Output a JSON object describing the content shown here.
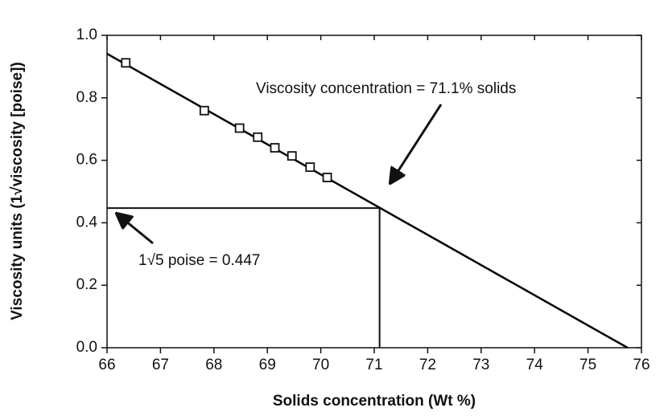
{
  "chart_data": {
    "type": "scatter",
    "x_label": "Solids concentration (Wt %)",
    "y_label": "Viscosity units (1√viscosity [poise])",
    "x": [
      66.35,
      67.82,
      68.48,
      68.82,
      69.14,
      69.46,
      69.8,
      70.12
    ],
    "values": [
      0.912,
      0.759,
      0.703,
      0.674,
      0.64,
      0.614,
      0.578,
      0.545
    ],
    "fit_line": {
      "x": [
        66,
        75.74
      ],
      "values": [
        0.941,
        0
      ]
    },
    "reference": {
      "x": 71.1,
      "y": 0.447
    },
    "annotations": [
      "Viscosity concentration = 71.1% solids",
      "1√5 poise = 0.447"
    ],
    "color": "#000000",
    "xlim": [
      66,
      76
    ],
    "xticks": [
      66,
      67,
      68,
      69,
      70,
      71,
      72,
      73,
      74,
      75,
      76
    ],
    "ylim": [
      0,
      1
    ],
    "yticks": [
      {
        "value": 0,
        "label": "0.0"
      },
      0.2,
      0.4,
      0.6,
      0.8,
      {
        "value": 1,
        "label": "1.0"
      }
    ]
  }
}
